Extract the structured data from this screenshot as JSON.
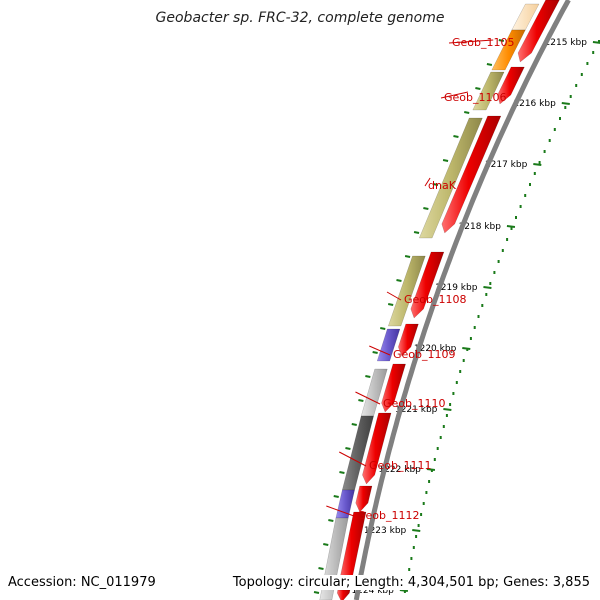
{
  "header": {
    "title": "Geobacter sp. FRC-32, complete genome"
  },
  "footer": {
    "accession": "Accession: NC_011979",
    "topology": "Topology: circular; Length: 4,304,501 bp; Genes: 3,855"
  },
  "ticks": [
    {
      "label": "1215 kbp"
    },
    {
      "label": "1216 kbp"
    },
    {
      "label": "1217 kbp"
    },
    {
      "label": "1218 kbp"
    },
    {
      "label": "1219 kbp"
    },
    {
      "label": "1220 kbp"
    },
    {
      "label": "1221 kbp"
    },
    {
      "label": "1222 kbp"
    },
    {
      "label": "1223 kbp"
    },
    {
      "label": "1224 kbp"
    }
  ],
  "gene_labels": [
    {
      "name": "Geob_1105"
    },
    {
      "name": "Geob_1106"
    },
    {
      "name": "dnaK"
    },
    {
      "name": "Geob_1108"
    },
    {
      "name": "Geob_1109"
    },
    {
      "name": "Geob_1110"
    },
    {
      "name": "Geob_1111"
    },
    {
      "name": "Geob_1112"
    }
  ],
  "colors": {
    "cds": "#ee0000",
    "backbone": "#808080",
    "tick": "#1a7a1a",
    "label": "#cc0000",
    "orange": "#ff8c00",
    "peach": "#ffe0b0",
    "khaki": "#bdb76b",
    "purple": "#6a5acd",
    "silver": "#c0c0c0",
    "darkgray": "#606060"
  }
}
